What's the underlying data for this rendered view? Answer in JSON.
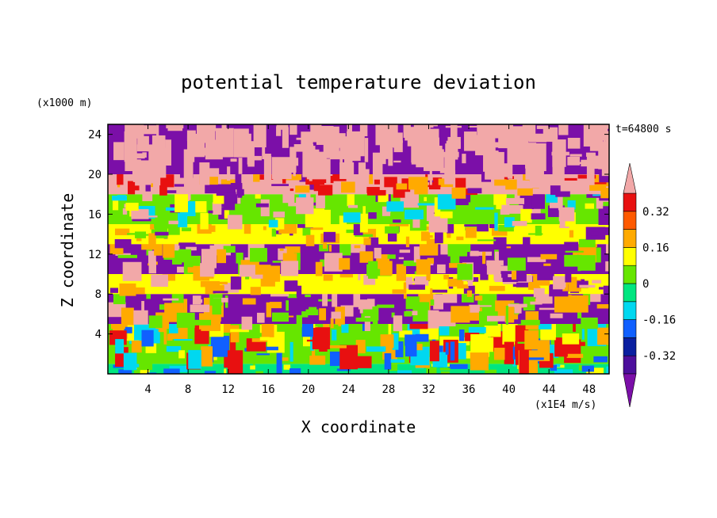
{
  "chart_data": {
    "type": "heatmap",
    "title": "potential temperature deviation",
    "xlabel": "X coordinate",
    "ylabel": "Z coordinate",
    "x_unit": "(x1E4 m/s)",
    "y_unit": "(x1000 m)",
    "time_label": "t=64800 s",
    "xlim": [
      0,
      50
    ],
    "ylim": [
      0,
      25
    ],
    "x_ticks": [
      4,
      8,
      12,
      16,
      20,
      24,
      28,
      32,
      36,
      40,
      44,
      48
    ],
    "y_ticks": [
      4,
      8,
      12,
      16,
      20,
      24
    ],
    "colorbar": {
      "levels": [
        -0.4,
        -0.32,
        -0.24,
        -0.16,
        -0.08,
        0,
        0.08,
        0.16,
        0.24,
        0.32,
        0.4
      ],
      "tick_labels": [
        "0.32",
        "0.16",
        "0",
        "-0.16",
        "-0.32"
      ],
      "tick_values": [
        0.32,
        0.16,
        0,
        -0.16,
        -0.32
      ],
      "under_color": "#7b0fa8",
      "over_color": "#f2a8a8",
      "colors": [
        "#4c0f9c",
        "#0a1fa0",
        "#1060ff",
        "#00d8f0",
        "#00e680",
        "#66e600",
        "#ffff00",
        "#ffaa00",
        "#ff5a00",
        "#e81010"
      ]
    },
    "bands": [
      {
        "z": [
          0,
          1
        ],
        "dominant": "#00e680",
        "mix": [
          "#1060ff",
          "#ffff00",
          "#66e600",
          "#00d8f0"
        ]
      },
      {
        "z": [
          1,
          5
        ],
        "dominant": "#66e600",
        "mix": [
          "#00d8f0",
          "#ffff00",
          "#1060ff",
          "#ffaa00",
          "#e81010"
        ]
      },
      {
        "z": [
          5,
          8
        ],
        "dominant": "#7b0fa8",
        "mix": [
          "#f2a8a8",
          "#ffaa00",
          "#66e600"
        ]
      },
      {
        "z": [
          8,
          10
        ],
        "dominant": "#ffff00",
        "mix": [
          "#7b0fa8",
          "#f2a8a8",
          "#ffaa00"
        ]
      },
      {
        "z": [
          10,
          13
        ],
        "dominant": "#7b0fa8",
        "mix": [
          "#f2a8a8",
          "#ffaa00",
          "#66e600"
        ]
      },
      {
        "z": [
          13,
          15
        ],
        "dominant": "#ffff00",
        "mix": [
          "#7b0fa8",
          "#ffaa00",
          "#66e600"
        ]
      },
      {
        "z": [
          15,
          18
        ],
        "dominant": "#66e600",
        "mix": [
          "#00d8f0",
          "#ffff00",
          "#7b0fa8",
          "#f2a8a8"
        ]
      },
      {
        "z": [
          18,
          20
        ],
        "dominant": "#f2a8a8",
        "mix": [
          "#e81010",
          "#ffaa00",
          "#7b0fa8"
        ]
      },
      {
        "z": [
          20,
          25
        ],
        "dominant": "#7b0fa8",
        "mix": [
          "#f2a8a8",
          "#f2a8a8"
        ]
      }
    ],
    "grid": false
  }
}
